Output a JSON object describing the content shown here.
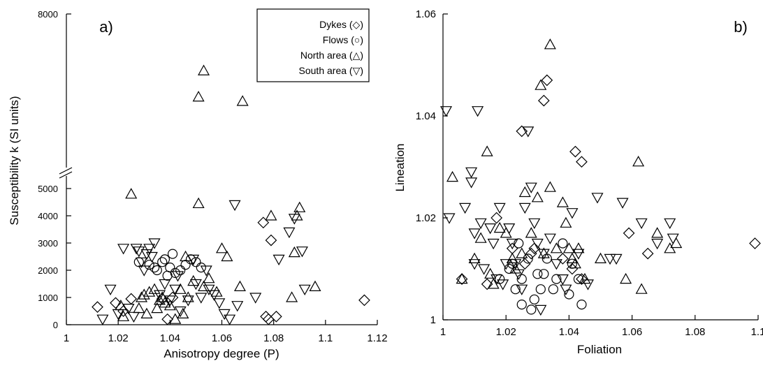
{
  "chart_data": [
    {
      "type": "scatter",
      "panel_label": "a)",
      "xlabel": "Anisotropy degree (P)",
      "ylabel": "Susceptibility k (SI units)",
      "xlim": [
        1.0,
        1.12
      ],
      "x_ticks": [
        "1",
        "1.02",
        "1.04",
        "1.06",
        "1.08",
        "1.1",
        "1.12"
      ],
      "y_ticks": [
        "0",
        "1000",
        "2000",
        "3000",
        "4000",
        "5000",
        "8000"
      ],
      "y_axis_break": true,
      "legend": {
        "position": "top-right",
        "entries": [
          {
            "label": "Dykes (◇)",
            "marker": "diamond"
          },
          {
            "label": "Flows (○)",
            "marker": "circle"
          },
          {
            "label": "North area (△)",
            "marker": "triangle-up"
          },
          {
            "label": "South area (▽)",
            "marker": "triangle-down"
          }
        ]
      },
      "series": [
        {
          "marker": "diamond",
          "points": [
            [
              1.012,
              650
            ],
            [
              1.019,
              800
            ],
            [
              1.022,
              500
            ],
            [
              1.025,
              950
            ],
            [
              1.037,
              950
            ],
            [
              1.039,
              200
            ],
            [
              1.041,
              1000
            ],
            [
              1.076,
              3750
            ],
            [
              1.077,
              300
            ],
            [
              1.078,
              200
            ],
            [
              1.079,
              3100
            ],
            [
              1.081,
              300
            ],
            [
              1.115,
              900
            ]
          ]
        },
        {
          "marker": "circle",
          "points": [
            [
              1.028,
              2300
            ],
            [
              1.032,
              2200
            ],
            [
              1.034,
              2100
            ],
            [
              1.035,
              2000
            ],
            [
              1.037,
              2300
            ],
            [
              1.038,
              2400
            ],
            [
              1.039,
              1800
            ],
            [
              1.04,
              2100
            ],
            [
              1.041,
              2600
            ],
            [
              1.042,
              1900
            ],
            [
              1.044,
              2000
            ],
            [
              1.046,
              2200
            ],
            [
              1.048,
              2400
            ],
            [
              1.05,
              2300
            ],
            [
              1.052,
              2100
            ]
          ]
        },
        {
          "marker": "triangle-up",
          "points": [
            [
              1.021,
              700
            ],
            [
              1.022,
              300
            ],
            [
              1.025,
              4800
            ],
            [
              1.028,
              600
            ],
            [
              1.029,
              1000
            ],
            [
              1.03,
              1100
            ],
            [
              1.031,
              400
            ],
            [
              1.032,
              1200
            ],
            [
              1.034,
              1300
            ],
            [
              1.035,
              600
            ],
            [
              1.036,
              900
            ],
            [
              1.037,
              1000
            ],
            [
              1.038,
              800
            ],
            [
              1.04,
              700
            ],
            [
              1.042,
              200
            ],
            [
              1.044,
              1300
            ],
            [
              1.045,
              400
            ],
            [
              1.046,
              2500
            ],
            [
              1.047,
              1000
            ],
            [
              1.049,
              1600
            ],
            [
              1.051,
              6100
            ],
            [
              1.051,
              4450
            ],
            [
              1.053,
              1400
            ],
            [
              1.053,
              6700
            ],
            [
              1.055,
              1700
            ],
            [
              1.058,
              1200
            ],
            [
              1.06,
              2800
            ],
            [
              1.062,
              2500
            ],
            [
              1.067,
              1400
            ],
            [
              1.068,
              6000
            ],
            [
              1.079,
              4000
            ],
            [
              1.087,
              1000
            ],
            [
              1.088,
              2650
            ],
            [
              1.089,
              4000
            ],
            [
              1.09,
              4300
            ],
            [
              1.096,
              1400
            ]
          ]
        },
        {
          "marker": "triangle-down",
          "points": [
            [
              1.014,
              200
            ],
            [
              1.017,
              1300
            ],
            [
              1.02,
              400
            ],
            [
              1.022,
              2800
            ],
            [
              1.024,
              600
            ],
            [
              1.026,
              300
            ],
            [
              1.027,
              2800
            ],
            [
              1.028,
              2700
            ],
            [
              1.029,
              2300
            ],
            [
              1.03,
              2000
            ],
            [
              1.031,
              2600
            ],
            [
              1.032,
              2800
            ],
            [
              1.033,
              2500
            ],
            [
              1.034,
              3000
            ],
            [
              1.036,
              1100
            ],
            [
              1.038,
              1500
            ],
            [
              1.04,
              900
            ],
            [
              1.042,
              1300
            ],
            [
              1.043,
              1800
            ],
            [
              1.044,
              500
            ],
            [
              1.047,
              900
            ],
            [
              1.049,
              2400
            ],
            [
              1.05,
              1500
            ],
            [
              1.052,
              1000
            ],
            [
              1.054,
              2000
            ],
            [
              1.055,
              1300
            ],
            [
              1.057,
              1100
            ],
            [
              1.059,
              800
            ],
            [
              1.061,
              400
            ],
            [
              1.063,
              200
            ],
            [
              1.065,
              4400
            ],
            [
              1.066,
              700
            ],
            [
              1.073,
              1000
            ],
            [
              1.082,
              2400
            ],
            [
              1.086,
              3400
            ],
            [
              1.088,
              3900
            ],
            [
              1.091,
              2700
            ],
            [
              1.092,
              1300
            ]
          ]
        }
      ]
    },
    {
      "type": "scatter",
      "panel_label": "b)",
      "xlabel": "Foliation",
      "ylabel": "Lineation",
      "xlim": [
        1.0,
        1.1
      ],
      "ylim": [
        1.0,
        1.06
      ],
      "x_ticks": [
        "1",
        "1.02",
        "1.04",
        "1.06",
        "1.08",
        "1.1"
      ],
      "y_ticks": [
        "1",
        "1.02",
        "1.04",
        "1.06"
      ],
      "series": [
        {
          "marker": "diamond",
          "points": [
            [
              1.006,
              1.008
            ],
            [
              1.014,
              1.007
            ],
            [
              1.017,
              1.02
            ],
            [
              1.022,
              1.014
            ],
            [
              1.025,
              1.037
            ],
            [
              1.026,
              1.011
            ],
            [
              1.028,
              1.013
            ],
            [
              1.029,
              1.014
            ],
            [
              1.032,
              1.043
            ],
            [
              1.033,
              1.047
            ],
            [
              1.038,
              1.012
            ],
            [
              1.041,
              1.01
            ],
            [
              1.042,
              1.033
            ],
            [
              1.044,
              1.031
            ],
            [
              1.044,
              1.008
            ],
            [
              1.059,
              1.017
            ],
            [
              1.065,
              1.013
            ],
            [
              1.099,
              1.015
            ]
          ]
        },
        {
          "marker": "circle",
          "points": [
            [
              1.018,
              1.008
            ],
            [
              1.021,
              1.01
            ],
            [
              1.022,
              1.011
            ],
            [
              1.023,
              1.006
            ],
            [
              1.024,
              1.015
            ],
            [
              1.025,
              1.008
            ],
            [
              1.025,
              1.003
            ],
            [
              1.027,
              1.012
            ],
            [
              1.028,
              1.002
            ],
            [
              1.029,
              1.004
            ],
            [
              1.03,
              1.009
            ],
            [
              1.031,
              1.006
            ],
            [
              1.032,
              1.009
            ],
            [
              1.033,
              1.012
            ],
            [
              1.035,
              1.006
            ],
            [
              1.036,
              1.008
            ],
            [
              1.038,
              1.015
            ],
            [
              1.04,
              1.005
            ],
            [
              1.041,
              1.011
            ],
            [
              1.043,
              1.008
            ],
            [
              1.044,
              1.003
            ]
          ]
        },
        {
          "marker": "triangle-up",
          "points": [
            [
              1.003,
              1.028
            ],
            [
              1.006,
              1.008
            ],
            [
              1.01,
              1.012
            ],
            [
              1.012,
              1.016
            ],
            [
              1.014,
              1.033
            ],
            [
              1.015,
              1.009
            ],
            [
              1.016,
              1.007
            ],
            [
              1.018,
              1.018
            ],
            [
              1.02,
              1.017
            ],
            [
              1.022,
              1.012
            ],
            [
              1.023,
              1.01
            ],
            [
              1.025,
              1.013
            ],
            [
              1.026,
              1.025
            ],
            [
              1.028,
              1.017
            ],
            [
              1.03,
              1.024
            ],
            [
              1.031,
              1.046
            ],
            [
              1.032,
              1.013
            ],
            [
              1.034,
              1.054
            ],
            [
              1.034,
              1.026
            ],
            [
              1.036,
              1.014
            ],
            [
              1.038,
              1.023
            ],
            [
              1.039,
              1.019
            ],
            [
              1.04,
              1.014
            ],
            [
              1.041,
              1.012
            ],
            [
              1.042,
              1.011
            ],
            [
              1.043,
              1.014
            ],
            [
              1.045,
              1.008
            ],
            [
              1.05,
              1.012
            ],
            [
              1.058,
              1.008
            ],
            [
              1.062,
              1.031
            ],
            [
              1.063,
              1.006
            ],
            [
              1.068,
              1.017
            ],
            [
              1.072,
              1.014
            ],
            [
              1.074,
              1.015
            ]
          ]
        },
        {
          "marker": "triangle-down",
          "points": [
            [
              1.001,
              1.041
            ],
            [
              1.002,
              1.02
            ],
            [
              1.007,
              1.022
            ],
            [
              1.009,
              1.029
            ],
            [
              1.009,
              1.027
            ],
            [
              1.01,
              1.017
            ],
            [
              1.01,
              1.011
            ],
            [
              1.011,
              1.041
            ],
            [
              1.012,
              1.019
            ],
            [
              1.013,
              1.01
            ],
            [
              1.015,
              1.018
            ],
            [
              1.016,
              1.015
            ],
            [
              1.017,
              1.008
            ],
            [
              1.018,
              1.022
            ],
            [
              1.019,
              1.007
            ],
            [
              1.02,
              1.011
            ],
            [
              1.021,
              1.018
            ],
            [
              1.022,
              1.015
            ],
            [
              1.023,
              1.011
            ],
            [
              1.024,
              1.009
            ],
            [
              1.025,
              1.006
            ],
            [
              1.026,
              1.022
            ],
            [
              1.027,
              1.037
            ],
            [
              1.028,
              1.026
            ],
            [
              1.029,
              1.019
            ],
            [
              1.03,
              1.015
            ],
            [
              1.031,
              1.002
            ],
            [
              1.032,
              1.013
            ],
            [
              1.034,
              1.016
            ],
            [
              1.036,
              1.011
            ],
            [
              1.038,
              1.008
            ],
            [
              1.039,
              1.006
            ],
            [
              1.041,
              1.021
            ],
            [
              1.043,
              1.013
            ],
            [
              1.046,
              1.007
            ],
            [
              1.049,
              1.024
            ],
            [
              1.053,
              1.012
            ],
            [
              1.055,
              1.012
            ],
            [
              1.057,
              1.023
            ],
            [
              1.063,
              1.019
            ],
            [
              1.068,
              1.015
            ],
            [
              1.072,
              1.019
            ],
            [
              1.073,
              1.016
            ]
          ]
        }
      ]
    }
  ]
}
